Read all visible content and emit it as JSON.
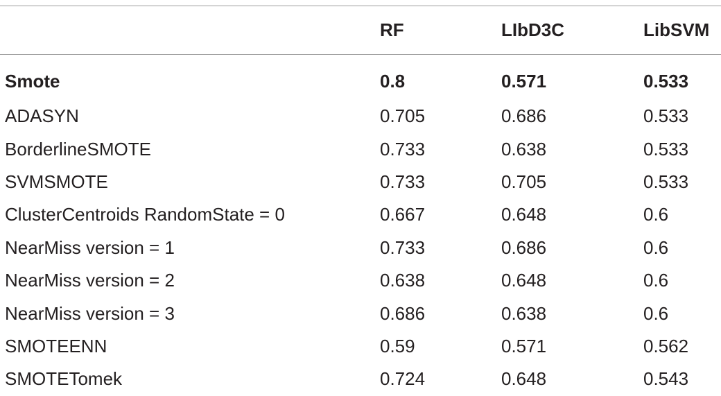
{
  "table": {
    "headers": [
      "",
      "RF",
      "LIbD3C",
      "LibSVM"
    ],
    "rows": [
      {
        "method": "Smote",
        "rf": "0.8",
        "libd3c": "0.571",
        "libsvm": "0.533",
        "bold": true
      },
      {
        "method": "ADASYN",
        "rf": "0.705",
        "libd3c": "0.686",
        "libsvm": "0.533",
        "bold": false
      },
      {
        "method": "BorderlineSMOTE",
        "rf": "0.733",
        "libd3c": "0.638",
        "libsvm": "0.533",
        "bold": false
      },
      {
        "method": "SVMSMOTE",
        "rf": "0.733",
        "libd3c": "0.705",
        "libsvm": "0.533",
        "bold": false
      },
      {
        "method": "ClusterCentroids RandomState = 0",
        "rf": "0.667",
        "libd3c": "0.648",
        "libsvm": "0.6",
        "bold": false
      },
      {
        "method": "NearMiss version = 1",
        "rf": "0.733",
        "libd3c": "0.686",
        "libsvm": "0.6",
        "bold": false
      },
      {
        "method": "NearMiss version = 2",
        "rf": "0.638",
        "libd3c": "0.648",
        "libsvm": "0.6",
        "bold": false
      },
      {
        "method": "NearMiss version = 3",
        "rf": "0.686",
        "libd3c": "0.638",
        "libsvm": "0.6",
        "bold": false
      },
      {
        "method": "SMOTEENN",
        "rf": "0.59",
        "libd3c": "0.571",
        "libsvm": "0.562",
        "bold": false
      },
      {
        "method": "SMOTETomek",
        "rf": "0.724",
        "libd3c": "0.648",
        "libsvm": "0.543",
        "bold": false
      }
    ]
  }
}
